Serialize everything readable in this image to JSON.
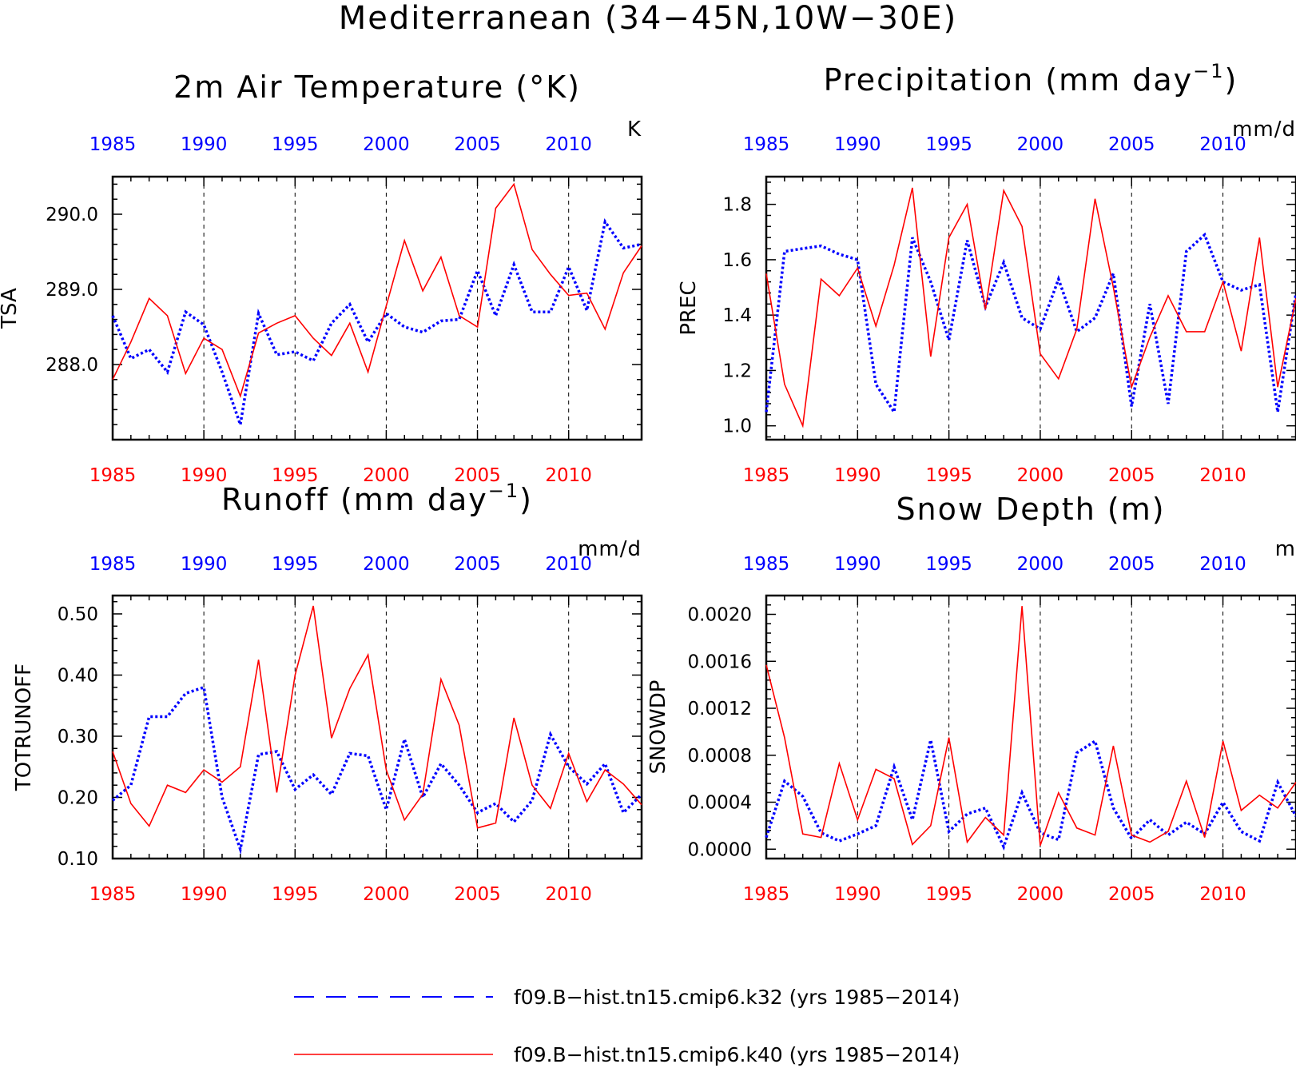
{
  "main_title": "Mediterranean (34−45N,10W−30E)",
  "colors": {
    "k32": "#0000ff",
    "k40": "#ff0000",
    "axis": "#000000"
  },
  "legend": [
    {
      "label": "f09.B−hist.tn15.cmip6.k32 (yrs 1985−2014)",
      "style": "dashed",
      "color": "#0000ff"
    },
    {
      "label": "f09.B−hist.tn15.cmip6.k40 (yrs 1985−2014)",
      "style": "solid",
      "color": "#ff0000"
    }
  ],
  "chart_data": [
    {
      "type": "line",
      "title": "2m Air Temperature (°K)",
      "ylabel": "TSA",
      "units": "K",
      "xlim": [
        1985,
        2014
      ],
      "ylim": [
        287.0,
        290.5
      ],
      "yticks": [
        288.0,
        289.0,
        290.0
      ],
      "ytick_labels": [
        "288.0",
        "289.0",
        "290.0"
      ],
      "xticks": [
        1985,
        1990,
        1995,
        2000,
        2005,
        2010
      ],
      "x": [
        1985,
        1986,
        1987,
        1988,
        1989,
        1990,
        1991,
        1992,
        1993,
        1994,
        1995,
        1996,
        1997,
        1998,
        1999,
        2000,
        2001,
        2002,
        2003,
        2004,
        2005,
        2006,
        2007,
        2008,
        2009,
        2010,
        2011,
        2012,
        2013,
        2014
      ],
      "series": [
        {
          "name": "f09.B−hist.tn15.cmip6.k32 (yrs 1985−2014)",
          "color": "#0000ff",
          "style": "dashed",
          "values": [
            288.65,
            288.08,
            288.2,
            287.9,
            288.7,
            288.53,
            287.9,
            287.2,
            288.68,
            288.13,
            288.17,
            288.05,
            288.55,
            288.8,
            288.3,
            288.68,
            288.5,
            288.43,
            288.58,
            288.6,
            289.25,
            288.65,
            289.33,
            288.7,
            288.7,
            289.3,
            288.72,
            289.9,
            289.55,
            289.6
          ]
        },
        {
          "name": "f09.B−hist.tn15.cmip6.k40 (yrs 1985−2014)",
          "color": "#ff0000",
          "style": "solid",
          "values": [
            287.8,
            288.3,
            288.88,
            288.65,
            287.88,
            288.35,
            288.2,
            287.58,
            288.42,
            288.55,
            288.65,
            288.35,
            288.12,
            288.55,
            287.9,
            288.78,
            289.65,
            288.98,
            289.43,
            288.65,
            288.5,
            290.08,
            290.4,
            289.53,
            289.2,
            288.92,
            288.95,
            288.47,
            289.22,
            289.58
          ]
        }
      ]
    },
    {
      "type": "line",
      "title": "Precipitation (mm day",
      "title_sup": "−1",
      "title_end": ")",
      "ylabel": "PREC",
      "units": "mm/d",
      "xlim": [
        1985,
        2014
      ],
      "ylim": [
        0.95,
        1.9
      ],
      "yticks": [
        1.0,
        1.2,
        1.4,
        1.6,
        1.8
      ],
      "ytick_labels": [
        "1.0",
        "1.2",
        "1.4",
        "1.6",
        "1.8"
      ],
      "xticks": [
        1985,
        1990,
        1995,
        2000,
        2005,
        2010
      ],
      "x": [
        1985,
        1986,
        1987,
        1988,
        1989,
        1990,
        1991,
        1992,
        1993,
        1994,
        1995,
        1996,
        1997,
        1998,
        1999,
        2000,
        2001,
        2002,
        2003,
        2004,
        2005,
        2006,
        2007,
        2008,
        2009,
        2010,
        2011,
        2012,
        2013,
        2014
      ],
      "series": [
        {
          "name": "f09.B−hist.tn15.cmip6.k32 (yrs 1985−2014)",
          "color": "#0000ff",
          "style": "dashed",
          "values": [
            1.05,
            1.63,
            1.64,
            1.65,
            1.62,
            1.6,
            1.15,
            1.05,
            1.68,
            1.52,
            1.31,
            1.67,
            1.43,
            1.59,
            1.39,
            1.35,
            1.53,
            1.34,
            1.39,
            1.55,
            1.07,
            1.44,
            1.08,
            1.63,
            1.69,
            1.52,
            1.49,
            1.51,
            1.05,
            1.48
          ]
        },
        {
          "name": "f09.B−hist.tn15.cmip6.k40 (yrs 1985−2014)",
          "color": "#ff0000",
          "style": "solid",
          "values": [
            1.55,
            1.15,
            1.0,
            1.53,
            1.47,
            1.57,
            1.36,
            1.58,
            1.86,
            1.25,
            1.68,
            1.8,
            1.42,
            1.85,
            1.72,
            1.26,
            1.17,
            1.35,
            1.82,
            1.5,
            1.14,
            1.32,
            1.47,
            1.34,
            1.34,
            1.52,
            1.27,
            1.68,
            1.14,
            1.46
          ]
        }
      ]
    },
    {
      "type": "line",
      "title": "Runoff (mm day",
      "title_sup": "−1",
      "title_end": ")",
      "ylabel": "TOTRUNOFF",
      "units": "mm/d",
      "xlim": [
        1985,
        2014
      ],
      "ylim": [
        0.1,
        0.53
      ],
      "yticks": [
        0.1,
        0.2,
        0.3,
        0.4,
        0.5
      ],
      "ytick_labels": [
        "0.10",
        "0.20",
        "0.30",
        "0.40",
        "0.50"
      ],
      "xticks": [
        1985,
        1990,
        1995,
        2000,
        2005,
        2010
      ],
      "x": [
        1985,
        1986,
        1987,
        1988,
        1989,
        1990,
        1991,
        1992,
        1993,
        1994,
        1995,
        1996,
        1997,
        1998,
        1999,
        2000,
        2001,
        2002,
        2003,
        2004,
        2005,
        2006,
        2007,
        2008,
        2009,
        2010,
        2011,
        2012,
        2013,
        2014
      ],
      "series": [
        {
          "name": "f09.B−hist.tn15.cmip6.k32 (yrs 1985−2014)",
          "color": "#0000ff",
          "style": "dashed",
          "values": [
            0.195,
            0.22,
            0.332,
            0.332,
            0.37,
            0.38,
            0.2,
            0.115,
            0.27,
            0.275,
            0.213,
            0.237,
            0.205,
            0.272,
            0.268,
            0.18,
            0.295,
            0.2,
            0.255,
            0.22,
            0.175,
            0.19,
            0.16,
            0.195,
            0.303,
            0.25,
            0.222,
            0.255,
            0.175,
            0.205
          ]
        },
        {
          "name": "f09.B−hist.tn15.cmip6.k40 (yrs 1985−2014)",
          "color": "#ff0000",
          "style": "solid",
          "values": [
            0.275,
            0.19,
            0.153,
            0.22,
            0.208,
            0.245,
            0.225,
            0.25,
            0.425,
            0.208,
            0.4,
            0.513,
            0.297,
            0.378,
            0.433,
            0.245,
            0.163,
            0.205,
            0.393,
            0.318,
            0.15,
            0.158,
            0.33,
            0.22,
            0.182,
            0.272,
            0.193,
            0.245,
            0.222,
            0.188
          ]
        }
      ]
    },
    {
      "type": "line",
      "title": "Snow Depth (m)",
      "ylabel": "SNOWDP",
      "units": "m",
      "xlim": [
        1985,
        2014
      ],
      "ylim": [
        -8e-05,
        0.00216
      ],
      "yticks": [
        0.0,
        0.0004,
        0.0008,
        0.0012,
        0.0016,
        0.002
      ],
      "ytick_labels": [
        "0.0000",
        "0.0004",
        "0.0008",
        "0.0012",
        "0.0016",
        "0.0020"
      ],
      "xticks": [
        1985,
        1990,
        1995,
        2000,
        2005,
        2010
      ],
      "x": [
        1985,
        1986,
        1987,
        1988,
        1989,
        1990,
        1991,
        1992,
        1993,
        1994,
        1995,
        1996,
        1997,
        1998,
        1999,
        2000,
        2001,
        2002,
        2003,
        2004,
        2005,
        2006,
        2007,
        2008,
        2009,
        2010,
        2011,
        2012,
        2013,
        2014
      ],
      "series": [
        {
          "name": "f09.B−hist.tn15.cmip6.k32 (yrs 1985−2014)",
          "color": "#0000ff",
          "style": "dashed",
          "values": [
            0.0001,
            0.00058,
            0.00045,
            0.00014,
            7e-05,
            0.00013,
            0.0002,
            0.0007,
            0.00025,
            0.00093,
            0.00015,
            0.0003,
            0.00035,
            2e-05,
            0.00048,
            0.00014,
            8e-05,
            0.00082,
            0.00092,
            0.00035,
            9e-05,
            0.00025,
            0.00012,
            0.00023,
            0.00013,
            0.0004,
            0.00015,
            7e-05,
            0.00057,
            0.00028
          ]
        },
        {
          "name": "f09.B−hist.tn15.cmip6.k40 (yrs 1985−2014)",
          "color": "#ff0000",
          "style": "solid",
          "values": [
            0.00157,
            0.00095,
            0.00013,
            0.0001,
            0.00073,
            0.00025,
            0.00068,
            0.0006,
            4e-05,
            0.0002,
            0.00095,
            6e-05,
            0.00027,
            0.00012,
            0.00207,
            3e-05,
            0.00048,
            0.00018,
            0.00012,
            0.00088,
            0.00012,
            6e-05,
            0.00015,
            0.00058,
            0.0001,
            0.00092,
            0.00033,
            0.00046,
            0.00035,
            0.00057
          ]
        }
      ]
    }
  ]
}
